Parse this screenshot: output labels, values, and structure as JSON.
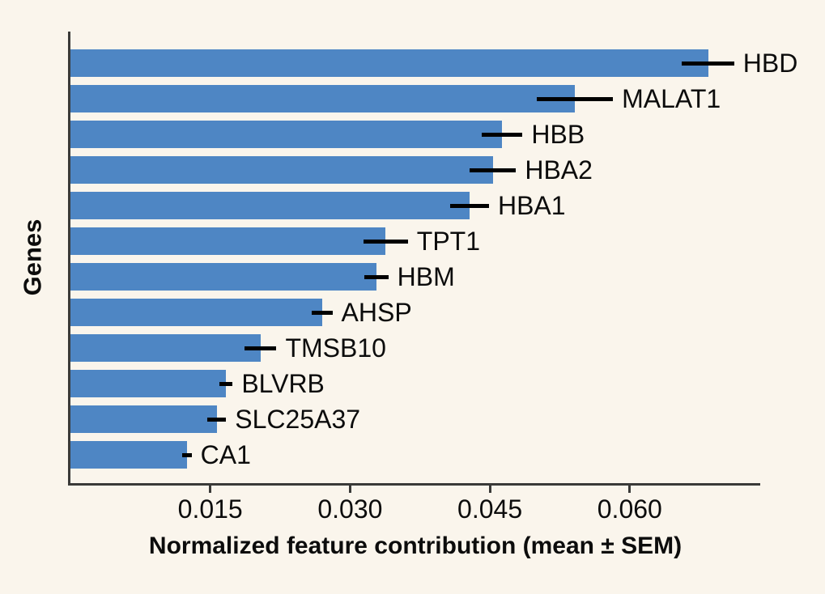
{
  "chart_data": {
    "type": "bar",
    "orientation": "horizontal",
    "title": "",
    "xlabel": "Normalized feature contribution (mean ± SEM)",
    "ylabel": "Genes",
    "xlim": [
      0,
      0.074
    ],
    "xticks": [
      0.015,
      0.03,
      0.045,
      0.06
    ],
    "xtick_labels": [
      "0.015",
      "0.030",
      "0.045",
      "0.060"
    ],
    "grid": false,
    "legend": "none",
    "categories": [
      "HBD",
      "MALAT1",
      "HBB",
      "HBA2",
      "HBA1",
      "TPT1",
      "HBM",
      "AHSP",
      "TMSB10",
      "BLVRB",
      "SLC25A37",
      "CA1"
    ],
    "series": [
      {
        "name": "Normalized feature contribution (mean)",
        "values": [
          0.0684,
          0.0541,
          0.0463,
          0.0453,
          0.0428,
          0.0338,
          0.0328,
          0.027,
          0.0204,
          0.0167,
          0.0157,
          0.0125
        ],
        "sem": [
          0.0028,
          0.0041,
          0.0022,
          0.0025,
          0.0021,
          0.0024,
          0.0013,
          0.0011,
          0.0017,
          0.0007,
          0.001,
          0.0005
        ]
      }
    ]
  },
  "colors": {
    "background": "#faf5ec",
    "bar": "#4e86c4",
    "error_bar": "#000000",
    "spine": "#3a3a38",
    "text": "#0c0c0c"
  }
}
